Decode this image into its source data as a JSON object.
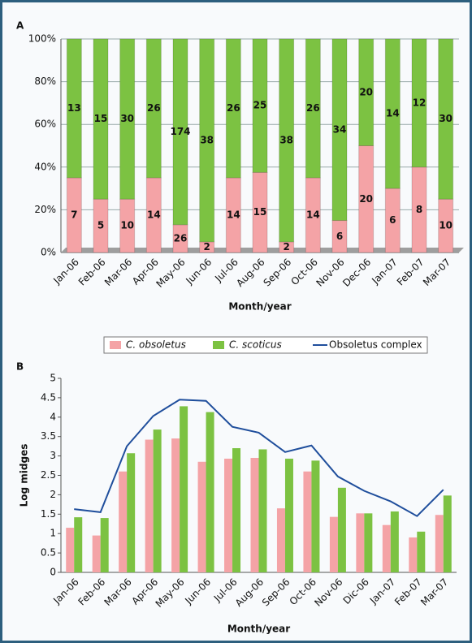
{
  "chart_data": [
    {
      "type": "bar",
      "stacking": "percent",
      "label": "A",
      "x_label": "Month/year",
      "categories": [
        "Jan-06",
        "Feb-06",
        "Mar-06",
        "Apr-06",
        "May-06",
        "Jun-06",
        "Jul-06",
        "Aug-06",
        "Sep-06",
        "Oct-06",
        "Nov-06",
        "Dec-06",
        "Jan-07",
        "Feb-07",
        "Mar-07"
      ],
      "series": [
        {
          "color": "#f4a3a6",
          "values": [
            7,
            5,
            10,
            14,
            26,
            2,
            14,
            15,
            2,
            14,
            6,
            20,
            6,
            8,
            10
          ]
        },
        {
          "color": "#7cc242",
          "values": [
            13,
            15,
            30,
            26,
            174,
            38,
            26,
            25,
            38,
            26,
            34,
            20,
            14,
            12,
            30
          ]
        }
      ],
      "ylim": [
        0,
        100
      ],
      "yticks": [
        {
          "value": 0,
          "label": "0%"
        },
        {
          "value": 20,
          "label": "20%"
        },
        {
          "value": 40,
          "label": "40%"
        },
        {
          "value": 60,
          "label": "60%"
        },
        {
          "value": 80,
          "label": "80%"
        },
        {
          "value": 100,
          "label": "100%"
        }
      ],
      "grid": true
    },
    {
      "type": "bar",
      "stacking": "none",
      "label": "B",
      "x_label": "Month/year",
      "y_label": "Log midges",
      "categories": [
        "Jan-06",
        "Feb-06",
        "Mar-06",
        "Apr-06",
        "May-06",
        "Jun-06",
        "Jul-06",
        "Aug-06",
        "Sep-06",
        "Oct-06",
        "Nov-06",
        "Dic-06",
        "Jan-07",
        "Feb-07",
        "Mar-07"
      ],
      "series": [
        {
          "name": "C. obsoletus",
          "kind": "bar",
          "color": "#f4a3a6",
          "values": [
            1.15,
            0.95,
            2.6,
            3.42,
            3.45,
            2.85,
            2.93,
            2.95,
            1.65,
            2.6,
            1.43,
            1.52,
            1.22,
            0.9,
            1.48
          ]
        },
        {
          "name": "C. scoticus",
          "kind": "bar",
          "color": "#7cc242",
          "values": [
            1.42,
            1.4,
            3.07,
            3.68,
            4.28,
            4.13,
            3.2,
            3.17,
            2.93,
            2.88,
            2.18,
            1.52,
            1.57,
            1.05,
            1.98
          ]
        },
        {
          "name": "Obsoletus complex",
          "kind": "line",
          "color": "#1f4e9c",
          "values": [
            1.63,
            1.55,
            3.25,
            4.03,
            4.45,
            4.42,
            3.75,
            3.6,
            3.1,
            3.27,
            2.47,
            2.1,
            1.83,
            1.45,
            2.13
          ]
        }
      ],
      "ylim": [
        0,
        5
      ],
      "yticks": [
        0,
        0.5,
        1,
        1.5,
        2,
        2.5,
        3,
        3.5,
        4,
        4.5,
        5
      ],
      "grid": false
    }
  ]
}
